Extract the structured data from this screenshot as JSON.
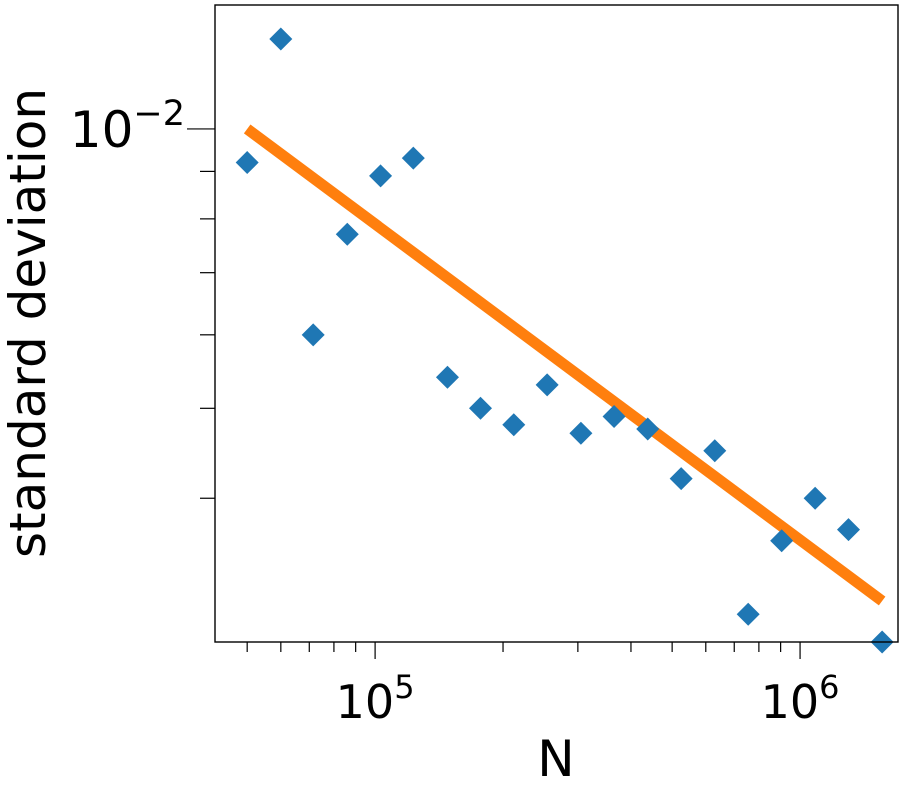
{
  "chart_data": {
    "type": "scatter",
    "xscale": "log",
    "yscale": "log",
    "xlabel": "N",
    "ylabel": "standard deviation",
    "xlim": [
      42000,
      1700000
    ],
    "ylim": [
      0.0028,
      0.0136
    ],
    "x_tick_labels": [
      {
        "base": "10",
        "exp": "5",
        "value": 100000
      },
      {
        "base": "10",
        "exp": "6",
        "value": 1000000
      }
    ],
    "y_tick_labels": [
      {
        "base": "10",
        "exp": "−2",
        "value": 0.01
      }
    ],
    "x_minor_ticks": [
      50000,
      60000,
      70000,
      80000,
      90000,
      200000,
      300000,
      400000,
      500000,
      600000,
      700000,
      800000,
      900000
    ],
    "y_minor_ticks": [
      0.004,
      0.005,
      0.006,
      0.007,
      0.008,
      0.009
    ],
    "grid": false,
    "series": [
      {
        "kind": "scatter",
        "marker": "diamond",
        "color": "#1f77b4",
        "points": [
          {
            "x": 50000,
            "y": 0.0092
          },
          {
            "x": 60000,
            "y": 0.0125
          },
          {
            "x": 71500,
            "y": 0.006
          },
          {
            "x": 86000,
            "y": 0.0077
          },
          {
            "x": 103000,
            "y": 0.0089
          },
          {
            "x": 123000,
            "y": 0.0093
          },
          {
            "x": 148000,
            "y": 0.0054
          },
          {
            "x": 177000,
            "y": 0.005
          },
          {
            "x": 212000,
            "y": 0.0048
          },
          {
            "x": 254000,
            "y": 0.0053
          },
          {
            "x": 305000,
            "y": 0.0047
          },
          {
            "x": 365000,
            "y": 0.0049
          },
          {
            "x": 438000,
            "y": 0.00475
          },
          {
            "x": 525000,
            "y": 0.0042
          },
          {
            "x": 630000,
            "y": 0.0045
          },
          {
            "x": 755000,
            "y": 0.003
          },
          {
            "x": 905000,
            "y": 0.0036
          },
          {
            "x": 1085000,
            "y": 0.004
          },
          {
            "x": 1300000,
            "y": 0.0037
          },
          {
            "x": 1560000,
            "y": 0.0028
          }
        ]
      },
      {
        "kind": "line",
        "color": "#ff7f0e",
        "points": [
          {
            "x": 50000,
            "y": 0.01
          },
          {
            "x": 1560000,
            "y": 0.0031
          }
        ]
      }
    ]
  }
}
